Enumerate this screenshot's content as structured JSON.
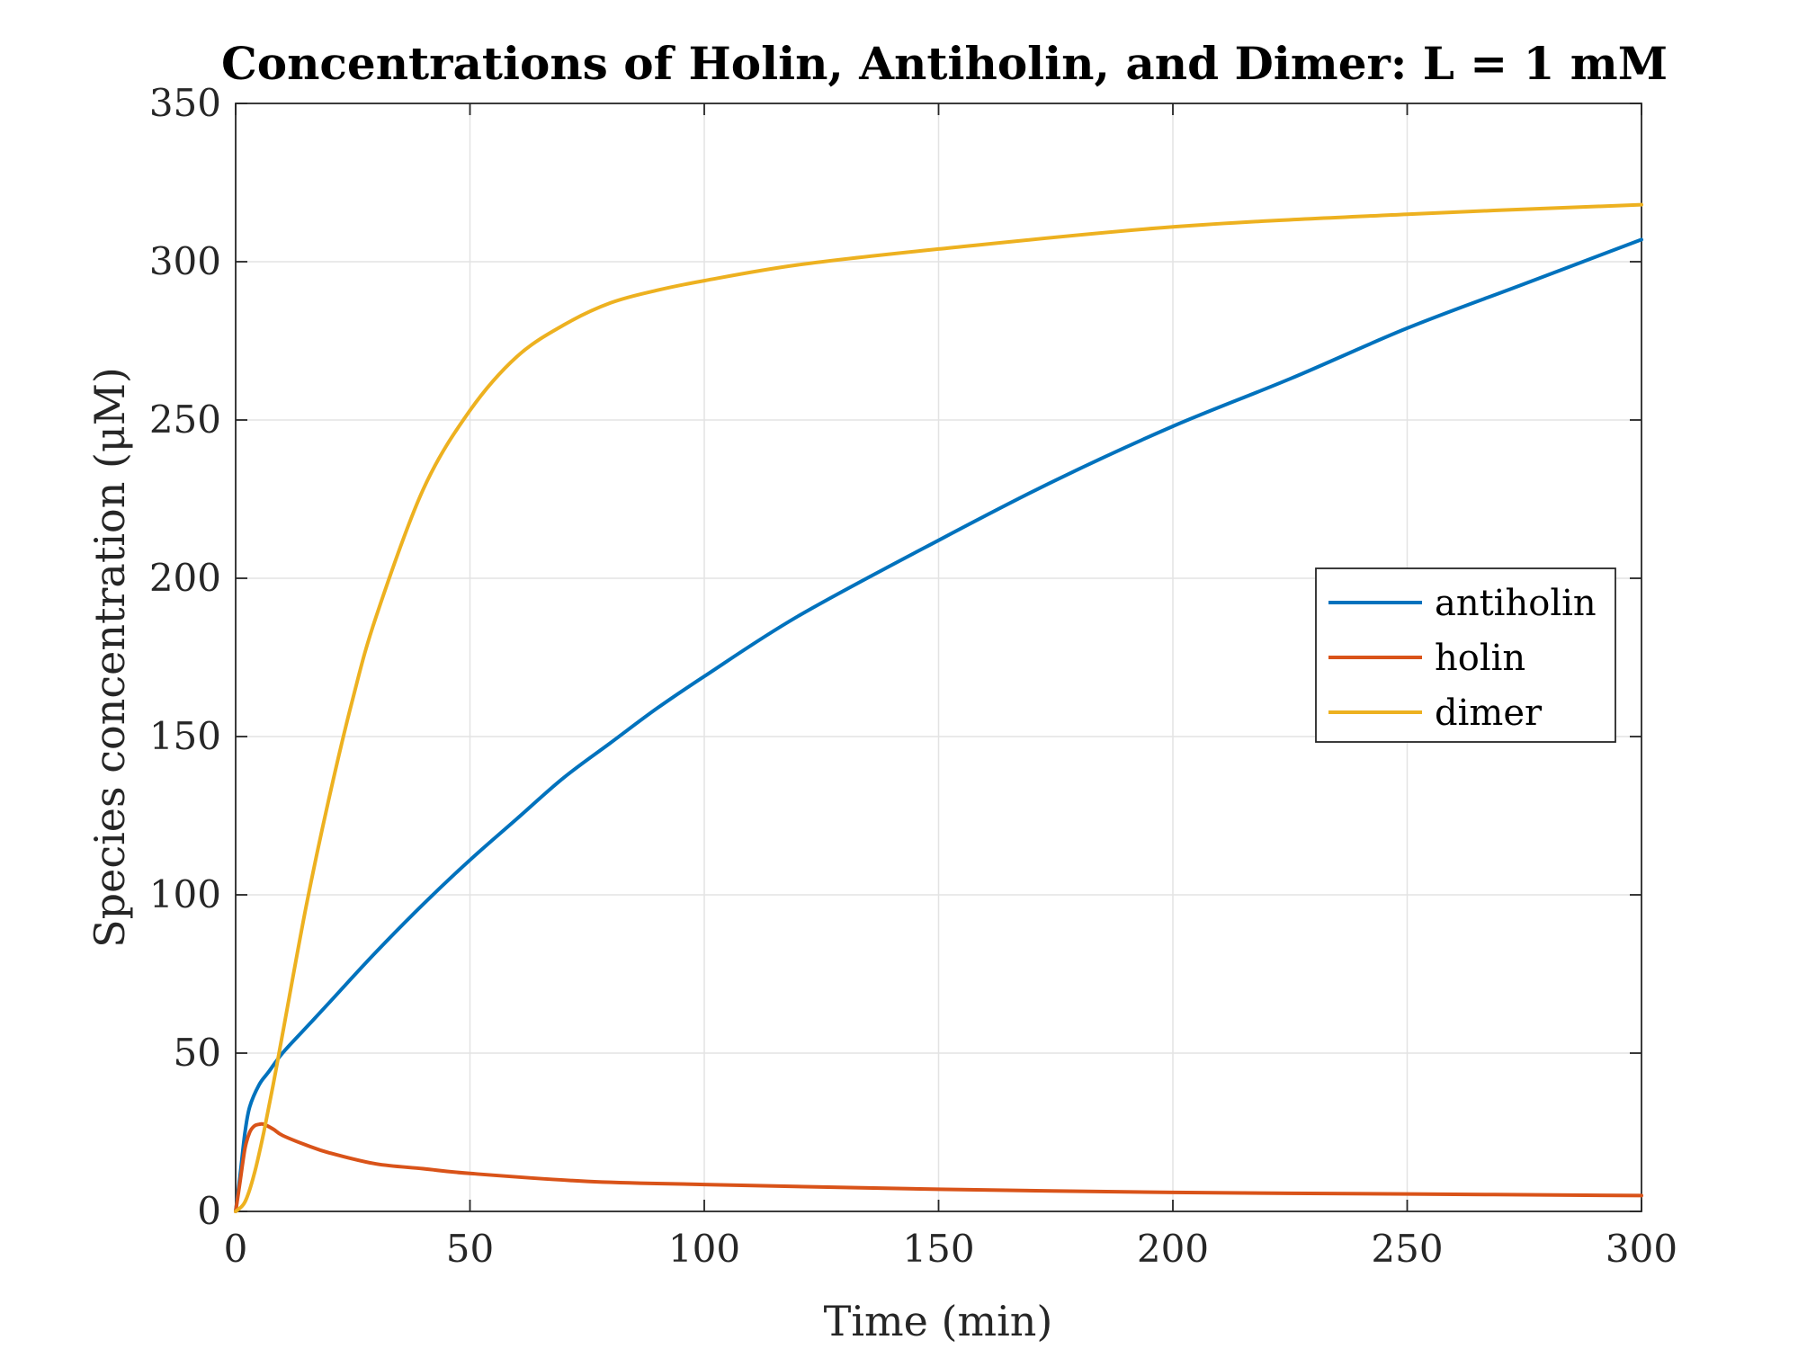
{
  "chart_data": {
    "type": "line",
    "title": "Concentrations of Holin, Antiholin, and Dimer: L = 1 mM",
    "xlabel": "Time (min)",
    "ylabel": "Species concentration (μM)",
    "xlim": [
      0,
      300
    ],
    "ylim": [
      0,
      350
    ],
    "xticks": [
      0,
      50,
      100,
      150,
      200,
      250,
      300
    ],
    "yticks": [
      0,
      50,
      100,
      150,
      200,
      250,
      300,
      350
    ],
    "xtick_labels": [
      "0",
      "50",
      "100",
      "150",
      "200",
      "250",
      "300"
    ],
    "ytick_labels": [
      "0",
      "50",
      "100",
      "150",
      "200",
      "250",
      "300",
      "350"
    ],
    "grid": true,
    "legend_position": "right",
    "series": [
      {
        "name": "antiholin",
        "color": "#0072BD",
        "x": [
          0,
          1,
          2,
          3,
          5,
          7,
          10,
          15,
          20,
          30,
          40,
          50,
          60,
          70,
          80,
          90,
          100,
          120,
          150,
          175,
          200,
          225,
          250,
          275,
          300
        ],
        "y": [
          0,
          12,
          25,
          33,
          40,
          44,
          50,
          58,
          66,
          82,
          97,
          111,
          124,
          137,
          148,
          159,
          169,
          188,
          212,
          231,
          248,
          263,
          279,
          293,
          307
        ]
      },
      {
        "name": "holin",
        "color": "#D95319",
        "x": [
          0,
          1,
          2,
          3,
          4,
          5,
          6,
          8,
          10,
          15,
          20,
          30,
          40,
          50,
          75,
          100,
          150,
          200,
          250,
          300
        ],
        "y": [
          0,
          10,
          20,
          25,
          27,
          27.5,
          27.5,
          26,
          24,
          21,
          18.5,
          15,
          13.5,
          12,
          9.5,
          8.5,
          7,
          6,
          5.5,
          5
        ]
      },
      {
        "name": "dimer",
        "color": "#EDB120",
        "x": [
          0,
          2,
          4,
          6,
          8,
          10,
          15,
          20,
          25,
          30,
          40,
          50,
          60,
          70,
          80,
          90,
          100,
          120,
          150,
          200,
          250,
          300
        ],
        "y": [
          0,
          3,
          12,
          25,
          40,
          56,
          96,
          131,
          162,
          188,
          228,
          253,
          270,
          280,
          287,
          291,
          294,
          299,
          304,
          311,
          315,
          318
        ]
      }
    ]
  }
}
